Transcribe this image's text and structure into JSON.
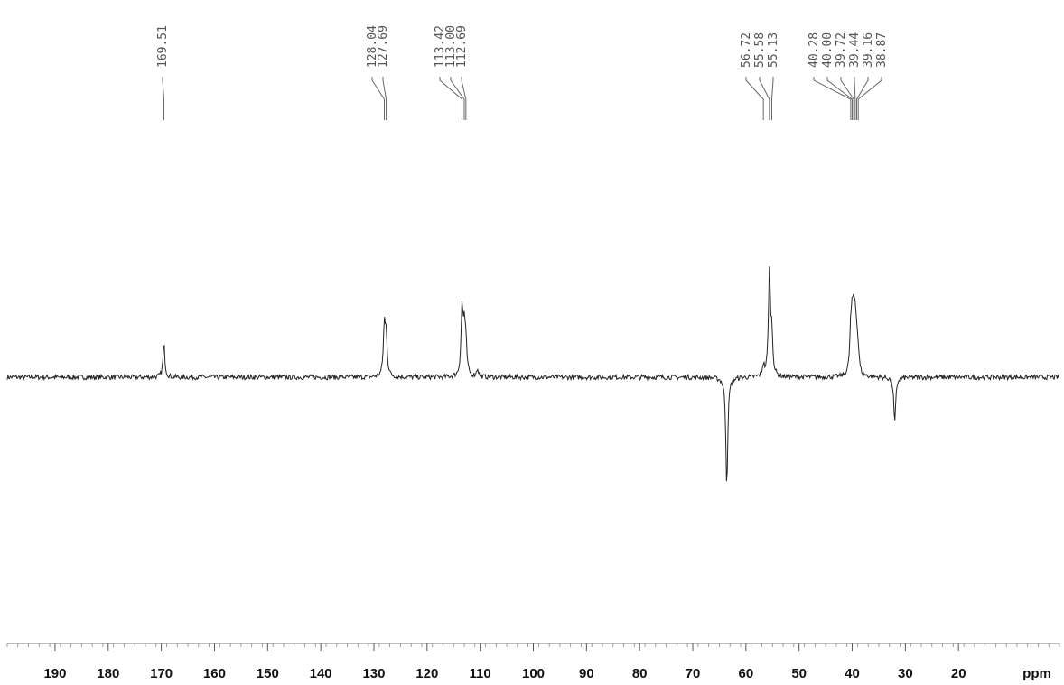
{
  "chart_data": {
    "type": "line",
    "title": "",
    "xlabel": "ppm",
    "ylabel": "",
    "x_direction": "descending",
    "xlim": [
      199,
      1
    ],
    "x_ticks": [
      190,
      180,
      170,
      160,
      150,
      140,
      130,
      120,
      110,
      100,
      90,
      80,
      70,
      60,
      50,
      40,
      30,
      20
    ],
    "grid": false,
    "peak_labels": [
      {
        "group": 1,
        "values": [
          "169.51"
        ]
      },
      {
        "group": 2,
        "values": [
          "128.04",
          "127.69"
        ]
      },
      {
        "group": 3,
        "values": [
          "113.42",
          "113.00",
          "112.69"
        ]
      },
      {
        "group": 4,
        "values": [
          "56.72",
          "55.58",
          "55.13"
        ]
      },
      {
        "group": 5,
        "values": [
          "40.28",
          "40.00",
          "39.72",
          "39.44",
          "39.16",
          "38.87"
        ]
      }
    ],
    "series": [
      {
        "peaks": [
          {
            "ppm": 169.51,
            "intensity": 0.12
          },
          {
            "ppm": 128.04,
            "intensity": 0.18
          },
          {
            "ppm": 127.69,
            "intensity": 0.14
          },
          {
            "ppm": 113.42,
            "intensity": 0.24
          },
          {
            "ppm": 113.0,
            "intensity": 0.16
          },
          {
            "ppm": 112.69,
            "intensity": 0.1
          },
          {
            "ppm": 110.5,
            "intensity": 0.03
          },
          {
            "ppm": 63.6,
            "intensity": -0.4
          },
          {
            "ppm": 56.72,
            "intensity": 0.04
          },
          {
            "ppm": 55.58,
            "intensity": 0.38
          },
          {
            "ppm": 55.13,
            "intensity": 0.14
          },
          {
            "ppm": 40.28,
            "intensity": 0.14
          },
          {
            "ppm": 40.0,
            "intensity": 0.15
          },
          {
            "ppm": 39.72,
            "intensity": 0.16
          },
          {
            "ppm": 39.44,
            "intensity": 0.15
          },
          {
            "ppm": 39.16,
            "intensity": 0.1
          },
          {
            "ppm": 38.87,
            "intensity": 0.06
          },
          {
            "ppm": 32.0,
            "intensity": -0.17
          }
        ]
      }
    ]
  }
}
